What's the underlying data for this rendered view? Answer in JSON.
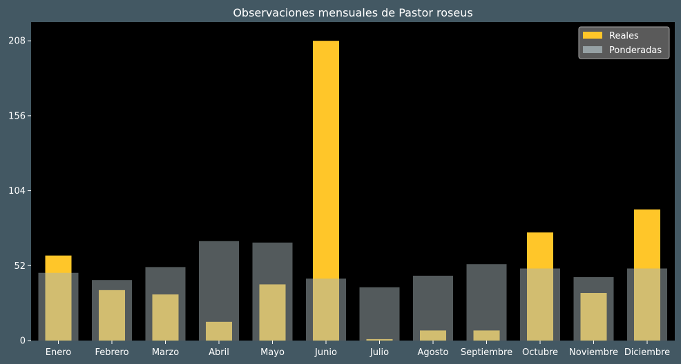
{
  "chart_data": {
    "type": "bar",
    "title": "Observaciones mensuales de Pastor roseus",
    "xlabel": "",
    "ylabel": "",
    "categories": [
      "Enero",
      "Febrero",
      "Marzo",
      "Abril",
      "Mayo",
      "Junio",
      "Julio",
      "Agosto",
      "Septiembre",
      "Octubre",
      "Noviembre",
      "Diciembre"
    ],
    "series": [
      {
        "name": "Reales",
        "color": "#ffc629",
        "values": [
          59,
          35,
          32,
          13,
          39,
          208,
          1,
          7,
          7,
          75,
          33,
          91
        ]
      },
      {
        "name": "Ponderadas",
        "color": "#a5b3b7",
        "opacity": 0.5,
        "values": [
          47,
          42,
          51,
          69,
          68,
          43,
          37,
          45,
          53,
          50,
          44,
          50
        ]
      }
    ],
    "ylim": [
      0,
      221
    ],
    "yticks": [
      0,
      52,
      104,
      156,
      208
    ],
    "legend_position": "top-right",
    "grid": false,
    "plot_background": "#000000",
    "figure_background": "#435863"
  }
}
